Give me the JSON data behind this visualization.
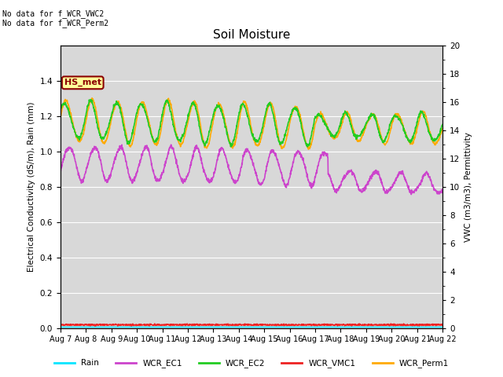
{
  "title": "Soil Moisture",
  "ylabel_left": "Electrical Conductivity (dS/m), Rain (mm)",
  "ylabel_right": "VWC (m3/m3), Permittivity",
  "annotation_text": "No data for f_WCR_VWC2\nNo data for f_WCR_Perm2",
  "box_label": "HS_met",
  "ylim_left": [
    0,
    1.6
  ],
  "ylim_right": [
    0,
    20
  ],
  "yticks_left": [
    0.0,
    0.2,
    0.4,
    0.6,
    0.8,
    1.0,
    1.2,
    1.4
  ],
  "yticks_right": [
    0,
    2,
    4,
    6,
    8,
    10,
    12,
    14,
    16,
    18,
    20
  ],
  "xtick_labels": [
    "Aug 7",
    "Aug 8",
    "Aug 9",
    "Aug 10",
    "Aug 11",
    "Aug 12",
    "Aug 13",
    "Aug 14",
    "Aug 15",
    "Aug 16",
    "Aug 17",
    "Aug 18",
    "Aug 19",
    "Aug 20",
    "Aug 21",
    "Aug 22"
  ],
  "colors": {
    "Rain": "#00e5ff",
    "WCR_EC1": "#cc44cc",
    "WCR_EC2": "#22cc22",
    "WCR_VMC1": "#ee2222",
    "WCR_Perm1": "#ffaa00"
  },
  "bg_light": "#d8d8d8",
  "bg_dark": "#c8c8c8",
  "grid_color": "#bbbbbb",
  "fig_bg": "#ffffff"
}
